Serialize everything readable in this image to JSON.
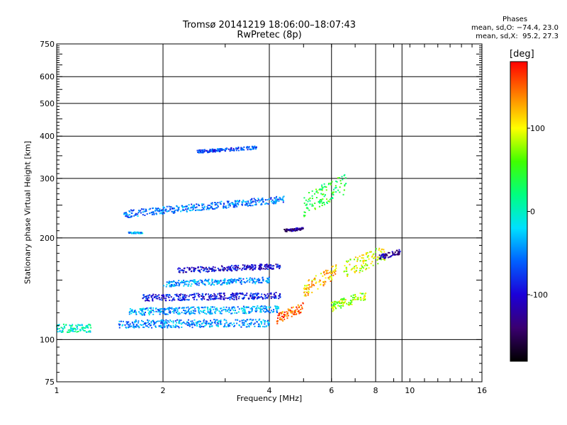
{
  "header": {
    "title_line1": "Tromsø 20141219 18:06:00–18:07:43",
    "title_line2": "RwPretec (8p)"
  },
  "phase_stats": {
    "heading": "Phases",
    "o_line": "mean, sd,O: −74.4, 23.0",
    "x_line": "mean, sd,X:  95.2, 27.3"
  },
  "colorbar": {
    "unit": "[deg]",
    "ticks": [
      {
        "label": "100",
        "value": 100
      },
      {
        "label": "0",
        "value": 0
      },
      {
        "label": "-100",
        "value": -100
      }
    ],
    "range": [
      -180,
      180
    ],
    "colors": [
      "#000000",
      "#3a0070",
      "#1c00d8",
      "#0060ff",
      "#00e0ff",
      "#00ff80",
      "#40ff00",
      "#ffff00",
      "#ff8000",
      "#ff0000"
    ]
  },
  "chart_data": {
    "type": "scatter",
    "title": "Tromsø 20141219 18:06:00–18:07:43",
    "subtitle": "RwPretec (8p)",
    "xlabel": "Frequency [MHz]",
    "ylabel": "Stationary phase Virtual Height [km]",
    "x_scale": "log",
    "y_scale": "log",
    "xlim": [
      1,
      16
    ],
    "ylim": [
      75,
      750
    ],
    "x_ticks": [
      {
        "label": "1",
        "value": 1
      },
      {
        "label": "2",
        "value": 2
      },
      {
        "label": "4",
        "value": 4
      },
      {
        "label": "6",
        "value": 6
      },
      {
        "label": "8",
        "value": 8
      },
      {
        "label": "10",
        "value": 10
      },
      {
        "label": "16",
        "value": 16
      }
    ],
    "y_ticks": [
      {
        "label": "75",
        "value": 75
      },
      {
        "label": "100",
        "value": 100
      },
      {
        "label": "200",
        "value": 200
      },
      {
        "label": "300",
        "value": 300
      },
      {
        "label": "400",
        "value": 400
      },
      {
        "label": "500",
        "value": 500
      },
      {
        "label": "600",
        "value": 600
      },
      {
        "label": "750",
        "value": 750
      }
    ],
    "gridlines_x": [
      2,
      4,
      6,
      8,
      9.5
    ],
    "gridlines_y": [
      100,
      200,
      300,
      400,
      500,
      600
    ],
    "color_value": "phase [deg]",
    "traces": [
      {
        "x0": 1.0,
        "x1": 1.25,
        "h0": 108,
        "h1": 108,
        "phase": 0,
        "spread": 3
      },
      {
        "x0": 1.5,
        "x1": 4.0,
        "h0": 111,
        "h1": 112,
        "phase": -45,
        "spread": 3
      },
      {
        "x0": 1.6,
        "x1": 4.3,
        "h0": 121,
        "h1": 123,
        "phase": -40,
        "spread": 3
      },
      {
        "x0": 1.75,
        "x1": 4.3,
        "h0": 133,
        "h1": 135,
        "phase": -90,
        "spread": 3
      },
      {
        "x0": 2.0,
        "x1": 4.0,
        "h0": 146,
        "h1": 150,
        "phase": -45,
        "spread": 3
      },
      {
        "x0": 2.2,
        "x1": 4.3,
        "h0": 160,
        "h1": 165,
        "phase": -100,
        "spread": 3
      },
      {
        "x0": 1.55,
        "x1": 4.4,
        "h0": 235,
        "h1": 260,
        "phase": -55,
        "spread": 6
      },
      {
        "x0": 1.6,
        "x1": 1.75,
        "h0": 207,
        "h1": 207,
        "phase": -40,
        "spread": 1
      },
      {
        "x0": 4.2,
        "x1": 5.0,
        "h0": 115,
        "h1": 125,
        "phase": 145,
        "spread": 4
      },
      {
        "x0": 5.0,
        "x1": 6.2,
        "h0": 140,
        "h1": 160,
        "phase": 120,
        "spread": 8
      },
      {
        "x0": 6.0,
        "x1": 7.5,
        "h0": 125,
        "h1": 135,
        "phase": 80,
        "spread": 4
      },
      {
        "x0": 6.5,
        "x1": 8.5,
        "h0": 160,
        "h1": 180,
        "phase": 90,
        "spread": 10
      },
      {
        "x0": 8.2,
        "x1": 9.4,
        "h0": 175,
        "h1": 182,
        "phase": -120,
        "spread": 3
      },
      {
        "x0": 4.4,
        "x1": 5.0,
        "h0": 210,
        "h1": 213,
        "phase": -130,
        "spread": 2
      },
      {
        "x0": 2.5,
        "x1": 3.7,
        "h0": 360,
        "h1": 370,
        "phase": -70,
        "spread": 4
      },
      {
        "x0": 5.0,
        "x1": 6.6,
        "h0": 250,
        "h1": 290,
        "phase": 40,
        "spread": 20
      }
    ]
  }
}
